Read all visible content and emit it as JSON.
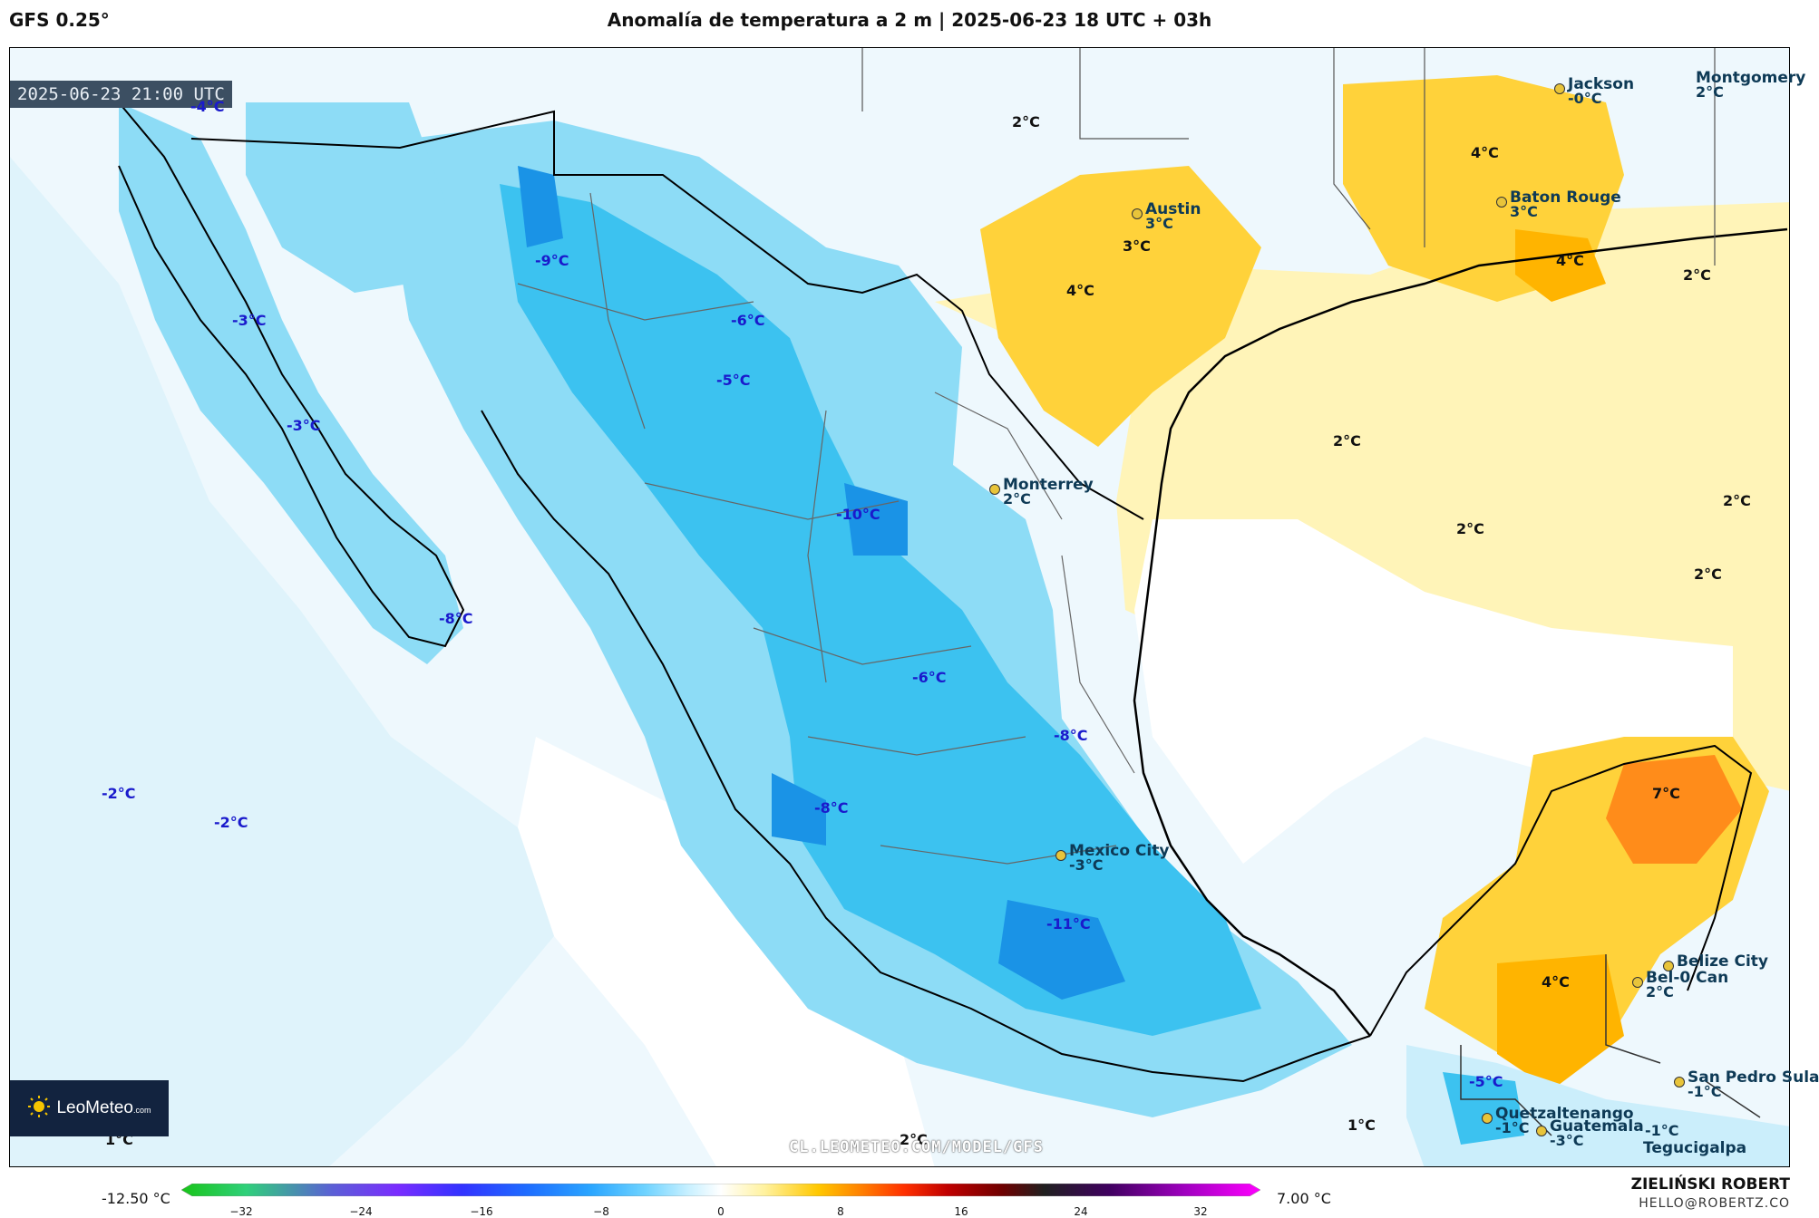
{
  "header": {
    "model": "GFS 0.25°",
    "title": "Anomalía de temperatura a 2 m | 2025-06-23 18 UTC + 03h"
  },
  "map": {
    "timestamp": "2025-06-23 21:00 UTC",
    "watermark": "CL.LEOMETEO.COM/MODEL/GFS",
    "logo_text": "LeoMeteo",
    "logo_suffix": ".com",
    "colors": {
      "ocean_base": "#eef8fd",
      "cold_light": "#cbeefb",
      "cold_mid": "#8ddcf6",
      "cold_strong": "#3cc2f0",
      "cold_deep": "#1a93e6",
      "warm_light": "#fff4b8",
      "warm_mid": "#ffd23a",
      "warm_strong": "#ffb400",
      "warm_deep": "#ff8c1a",
      "neutral": "#ffffff"
    },
    "anomaly_labels": [
      {
        "text": "-4°C",
        "kind": "cold"
      },
      {
        "text": "-9°C",
        "kind": "cold"
      },
      {
        "text": "-6°C",
        "kind": "cold"
      },
      {
        "text": "-5°C",
        "kind": "cold"
      },
      {
        "text": "-3°C",
        "kind": "cold"
      },
      {
        "text": "-3°C",
        "kind": "cold"
      },
      {
        "text": "-10°C",
        "kind": "cold"
      },
      {
        "text": "-8°C",
        "kind": "cold"
      },
      {
        "text": "-6°C",
        "kind": "cold"
      },
      {
        "text": "-8°C",
        "kind": "cold"
      },
      {
        "text": "-2°C",
        "kind": "cold"
      },
      {
        "text": "-2°C",
        "kind": "cold"
      },
      {
        "text": "-8°C",
        "kind": "cold"
      },
      {
        "text": "-11°C",
        "kind": "cold"
      },
      {
        "text": "-5°C",
        "kind": "cold"
      },
      {
        "text": "2°C",
        "kind": "warm"
      },
      {
        "text": "3°C",
        "kind": "warm"
      },
      {
        "text": "4°C",
        "kind": "warm"
      },
      {
        "text": "4°C",
        "kind": "warm"
      },
      {
        "text": "4°C",
        "kind": "warm"
      },
      {
        "text": "2°C",
        "kind": "warm"
      },
      {
        "text": "2°C",
        "kind": "warm"
      },
      {
        "text": "2°C",
        "kind": "warm"
      },
      {
        "text": "2°C",
        "kind": "warm"
      },
      {
        "text": "2°C",
        "kind": "warm"
      },
      {
        "text": "7°C",
        "kind": "warm"
      },
      {
        "text": "4°C",
        "kind": "warm"
      },
      {
        "text": "1°C",
        "kind": "warm"
      },
      {
        "text": "2°C",
        "kind": "warm"
      },
      {
        "text": "1°C",
        "kind": "warm"
      }
    ],
    "cities": [
      {
        "name": "Jackson",
        "value": "-0°C"
      },
      {
        "name": "Montgomery",
        "value": "2°C"
      },
      {
        "name": "Austin",
        "value": "3°C"
      },
      {
        "name": "Baton Rouge",
        "value": "3°C"
      },
      {
        "name": "Monterrey",
        "value": "2°C"
      },
      {
        "name": "Mexico City",
        "value": "-3°C"
      },
      {
        "name": "Belize City",
        "value": ""
      },
      {
        "name": "Bel-0 Can",
        "value": "2°C"
      },
      {
        "name": "San Pedro Sula",
        "value": "-1°C"
      },
      {
        "name": "Quetzaltenango",
        "value": "-1°C"
      },
      {
        "name": "Guatemala",
        "value": "-3°C"
      },
      {
        "name": "Tegucigalpa",
        "value": ""
      }
    ],
    "extra_small": "-1°C"
  },
  "colorbar": {
    "min_label": "-12.50 °C",
    "max_label": "7.00 °C",
    "ticks": [
      "−32",
      "−24",
      "−16",
      "−8",
      "0",
      "8",
      "16",
      "24",
      "32"
    ],
    "stops": [
      "#18c418",
      "#2fd07a",
      "#5b5fd6",
      "#7a2cff",
      "#3232ff",
      "#1e6cff",
      "#2aa6ff",
      "#6fd3ff",
      "#c8f0ff",
      "#ffffff",
      "#fff2a0",
      "#ffc800",
      "#ff8000",
      "#ff3000",
      "#c00000",
      "#700000",
      "#202020",
      "#400060",
      "#a000c0",
      "#ff00ff"
    ]
  },
  "footer": {
    "author": "ZIELIŃSKI ROBERT",
    "email": "HELLO@ROBERTZ.CO"
  }
}
